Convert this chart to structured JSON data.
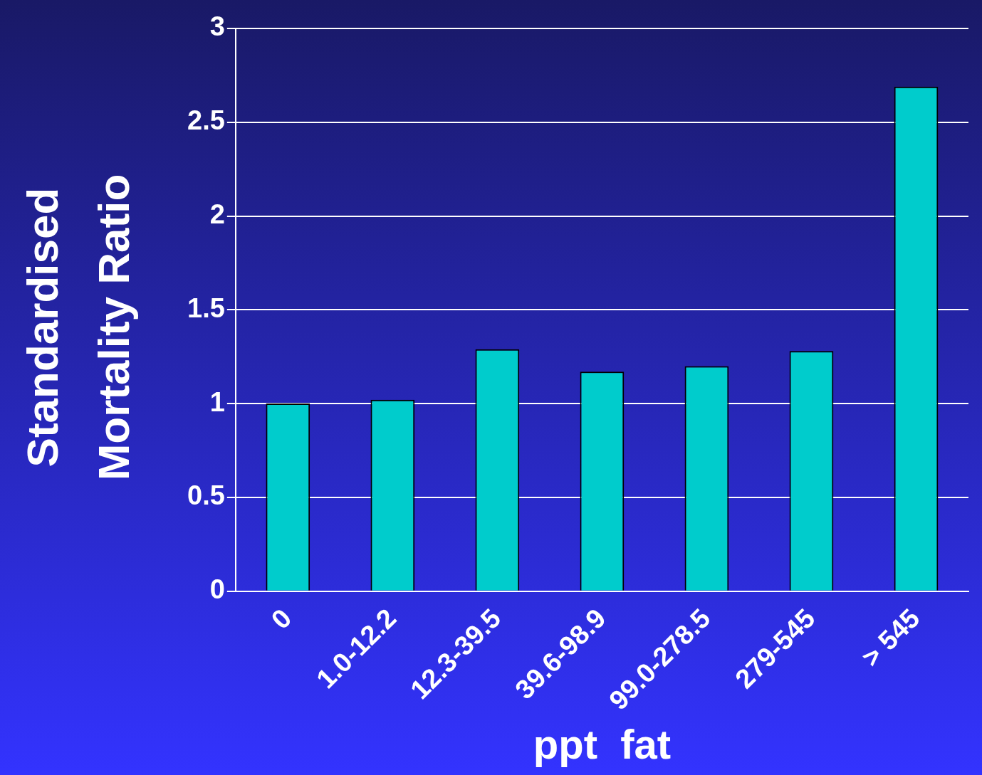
{
  "chart_data": {
    "type": "bar",
    "xlabel": "ppt  fat",
    "ylabel": "Standardised Mortality Ratio",
    "categories": [
      "0",
      "1.0-12.2",
      "12.3-39.5",
      "39.6-98.9",
      "99.0-278.5",
      "279-545",
      "> 545"
    ],
    "values": [
      1.0,
      1.02,
      1.29,
      1.17,
      1.2,
      1.28,
      2.69
    ],
    "color": "#00cccc",
    "ylim": [
      0,
      3
    ],
    "yticks": [
      0,
      0.5,
      1,
      1.5,
      2,
      2.5,
      3
    ],
    "grid": "y"
  }
}
